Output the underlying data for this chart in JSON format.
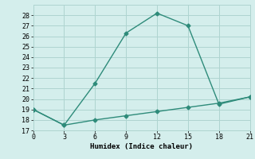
{
  "xlabel": "Humidex (Indice chaleur)",
  "line1_x": [
    0,
    3,
    6,
    9,
    12,
    15,
    18,
    21
  ],
  "line1_y": [
    19,
    17.5,
    21.5,
    26.3,
    28.2,
    27.0,
    19.5,
    20.2
  ],
  "line2_x": [
    0,
    3,
    6,
    9,
    12,
    15,
    18,
    21
  ],
  "line2_y": [
    19,
    17.5,
    18.0,
    18.4,
    18.8,
    19.2,
    19.6,
    20.2
  ],
  "line_color": "#2e8b7a",
  "bg_color": "#d4eeec",
  "grid_color": "#aed4d0",
  "xlim": [
    0,
    21
  ],
  "ylim": [
    17,
    29
  ],
  "xticks": [
    0,
    3,
    6,
    9,
    12,
    15,
    18,
    21
  ],
  "yticks": [
    17,
    18,
    19,
    20,
    21,
    22,
    23,
    24,
    25,
    26,
    27,
    28
  ]
}
